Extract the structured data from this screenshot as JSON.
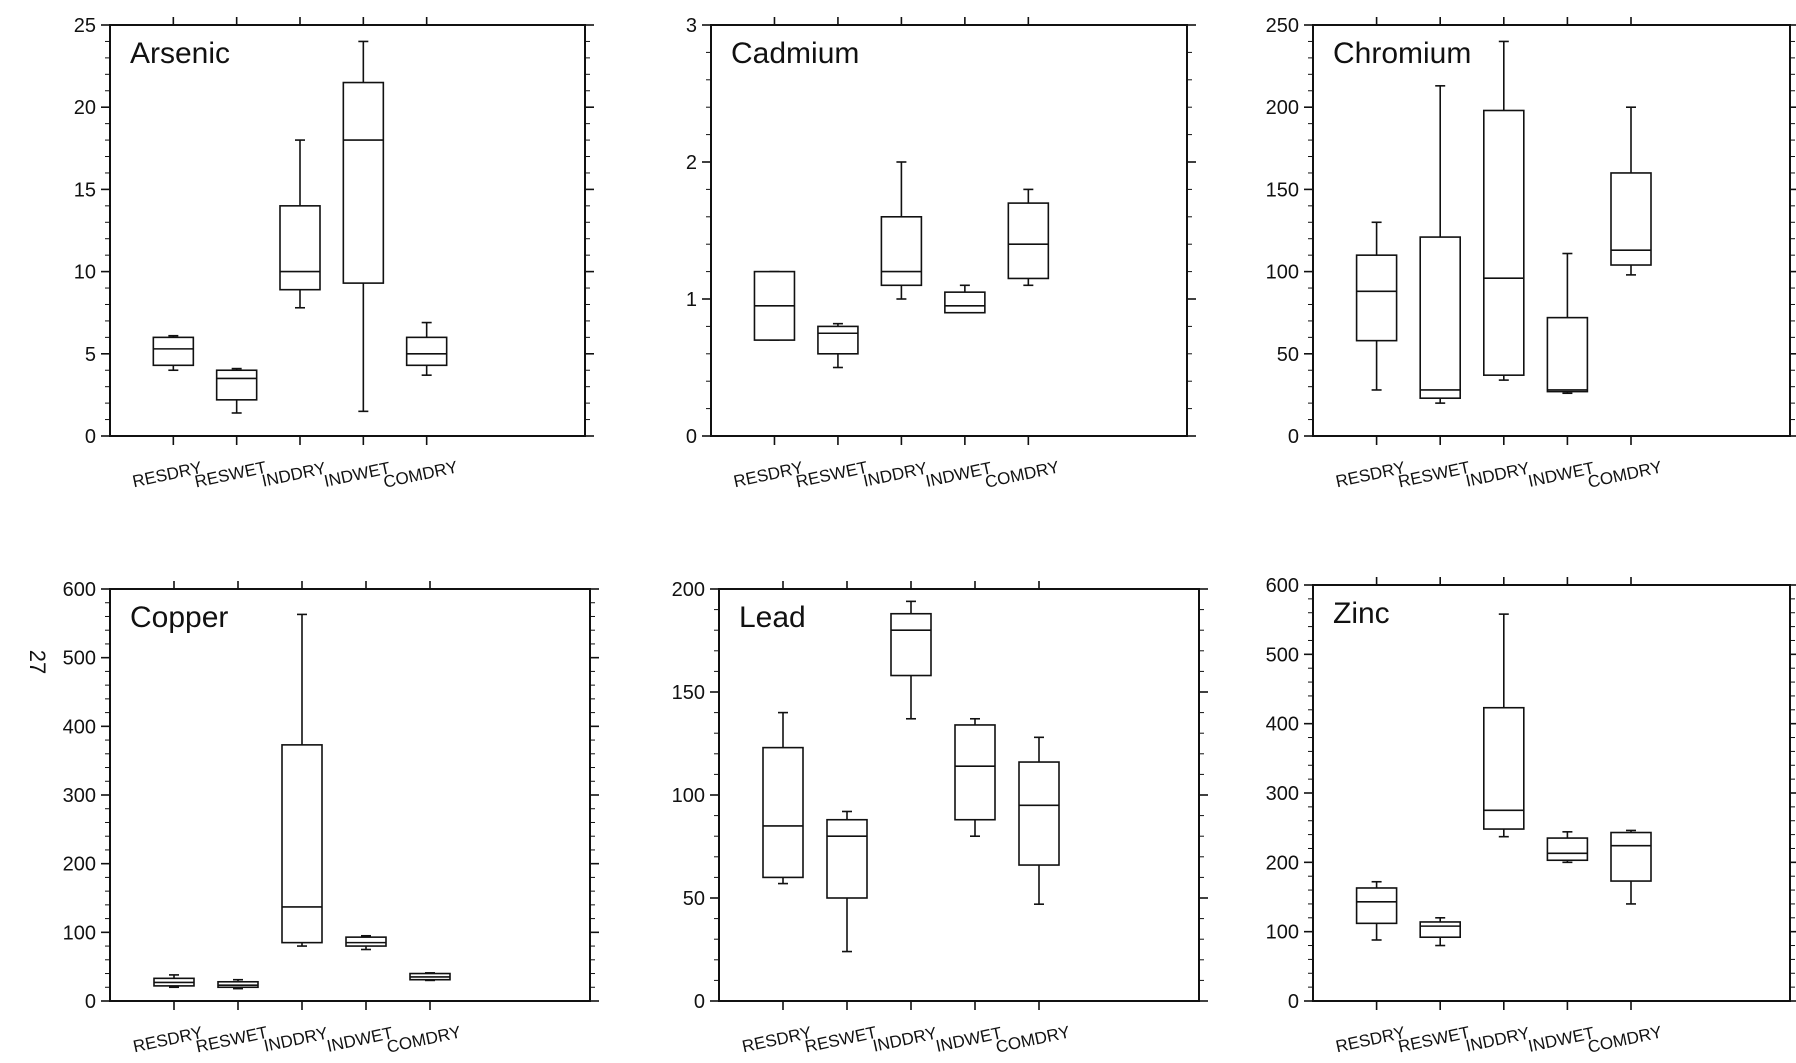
{
  "page_number": "27",
  "chart_data": [
    {
      "type": "box",
      "title": "Arsenic",
      "categories": [
        "RESDRY",
        "RESWET",
        "INDDRY",
        "INDWET",
        "COMDRY"
      ],
      "ylim": [
        0,
        25
      ],
      "yticks": [
        0,
        5,
        10,
        15,
        20,
        25
      ],
      "boxes": [
        {
          "min": 4.0,
          "q1": 4.3,
          "median": 5.3,
          "q3": 6.0,
          "max": 6.1
        },
        {
          "min": 1.4,
          "q1": 2.2,
          "median": 3.5,
          "q3": 4.0,
          "max": 4.1
        },
        {
          "min": 7.8,
          "q1": 8.9,
          "median": 10.0,
          "q3": 14.0,
          "max": 18.0
        },
        {
          "min": 1.5,
          "q1": 9.3,
          "median": 18.0,
          "q3": 21.5,
          "max": 24.0
        },
        {
          "min": 3.7,
          "q1": 4.3,
          "median": 5.0,
          "q3": 6.0,
          "max": 6.9
        }
      ]
    },
    {
      "type": "box",
      "title": "Cadmium",
      "categories": [
        "RESDRY",
        "RESWET",
        "INDDRY",
        "INDWET",
        "COMDRY"
      ],
      "ylim": [
        0,
        3
      ],
      "yticks": [
        0,
        1,
        2,
        3
      ],
      "boxes": [
        {
          "min": 0.7,
          "q1": 0.7,
          "median": 0.95,
          "q3": 1.2,
          "max": 1.2
        },
        {
          "min": 0.5,
          "q1": 0.6,
          "median": 0.75,
          "q3": 0.8,
          "max": 0.82
        },
        {
          "min": 1.0,
          "q1": 1.1,
          "median": 1.2,
          "q3": 1.6,
          "max": 2.0
        },
        {
          "min": 0.9,
          "q1": 0.9,
          "median": 0.95,
          "q3": 1.05,
          "max": 1.1
        },
        {
          "min": 1.1,
          "q1": 1.15,
          "median": 1.4,
          "q3": 1.7,
          "max": 1.8
        }
      ]
    },
    {
      "type": "box",
      "title": "Chromium",
      "categories": [
        "RESDRY",
        "RESWET",
        "INDDRY",
        "INDWET",
        "COMDRY"
      ],
      "ylim": [
        0,
        250
      ],
      "yticks": [
        0,
        50,
        100,
        150,
        200,
        250
      ],
      "boxes": [
        {
          "min": 28,
          "q1": 58,
          "median": 88,
          "q3": 110,
          "max": 130
        },
        {
          "min": 20,
          "q1": 23,
          "median": 28,
          "q3": 121,
          "max": 213
        },
        {
          "min": 34,
          "q1": 37,
          "median": 96,
          "q3": 198,
          "max": 240
        },
        {
          "min": 26,
          "q1": 27,
          "median": 28,
          "q3": 72,
          "max": 111
        },
        {
          "min": 98,
          "q1": 104,
          "median": 113,
          "q3": 160,
          "max": 200
        }
      ]
    },
    {
      "type": "box",
      "title": "Copper",
      "categories": [
        "RESDRY",
        "RESWET",
        "INDDRY",
        "INDWET",
        "COMDRY"
      ],
      "ylim": [
        0,
        600
      ],
      "yticks": [
        0,
        100,
        200,
        300,
        400,
        500,
        600
      ],
      "boxes": [
        {
          "min": 20,
          "q1": 22,
          "median": 27,
          "q3": 33,
          "max": 38
        },
        {
          "min": 18,
          "q1": 20,
          "median": 23,
          "q3": 28,
          "max": 31
        },
        {
          "min": 80,
          "q1": 85,
          "median": 137,
          "q3": 373,
          "max": 563
        },
        {
          "min": 75,
          "q1": 80,
          "median": 85,
          "q3": 93,
          "max": 95
        },
        {
          "min": 30,
          "q1": 31,
          "median": 35,
          "q3": 40,
          "max": 41
        }
      ]
    },
    {
      "type": "box",
      "title": "Lead",
      "categories": [
        "RESDRY",
        "RESWET",
        "INDDRY",
        "INDWET",
        "COMDRY"
      ],
      "ylim": [
        0,
        200
      ],
      "yticks": [
        0,
        50,
        100,
        150,
        200
      ],
      "boxes": [
        {
          "min": 57,
          "q1": 60,
          "median": 85,
          "q3": 123,
          "max": 140
        },
        {
          "min": 24,
          "q1": 50,
          "median": 80,
          "q3": 88,
          "max": 92
        },
        {
          "min": 137,
          "q1": 158,
          "median": 180,
          "q3": 188,
          "max": 194
        },
        {
          "min": 80,
          "q1": 88,
          "median": 114,
          "q3": 134,
          "max": 137
        },
        {
          "min": 47,
          "q1": 66,
          "median": 95,
          "q3": 116,
          "max": 128
        }
      ]
    },
    {
      "type": "box",
      "title": "Zinc",
      "categories": [
        "RESDRY",
        "RESWET",
        "INDDRY",
        "INDWET",
        "COMDRY"
      ],
      "ylim": [
        0,
        600
      ],
      "yticks": [
        0,
        100,
        200,
        300,
        400,
        500,
        600
      ],
      "boxes": [
        {
          "min": 88,
          "q1": 112,
          "median": 143,
          "q3": 163,
          "max": 172
        },
        {
          "min": 80,
          "q1": 92,
          "median": 108,
          "q3": 114,
          "max": 120
        },
        {
          "min": 237,
          "q1": 248,
          "median": 275,
          "q3": 423,
          "max": 558
        },
        {
          "min": 200,
          "q1": 203,
          "median": 213,
          "q3": 235,
          "max": 244
        },
        {
          "min": 140,
          "q1": 173,
          "median": 224,
          "q3": 243,
          "max": 246
        }
      ]
    }
  ]
}
